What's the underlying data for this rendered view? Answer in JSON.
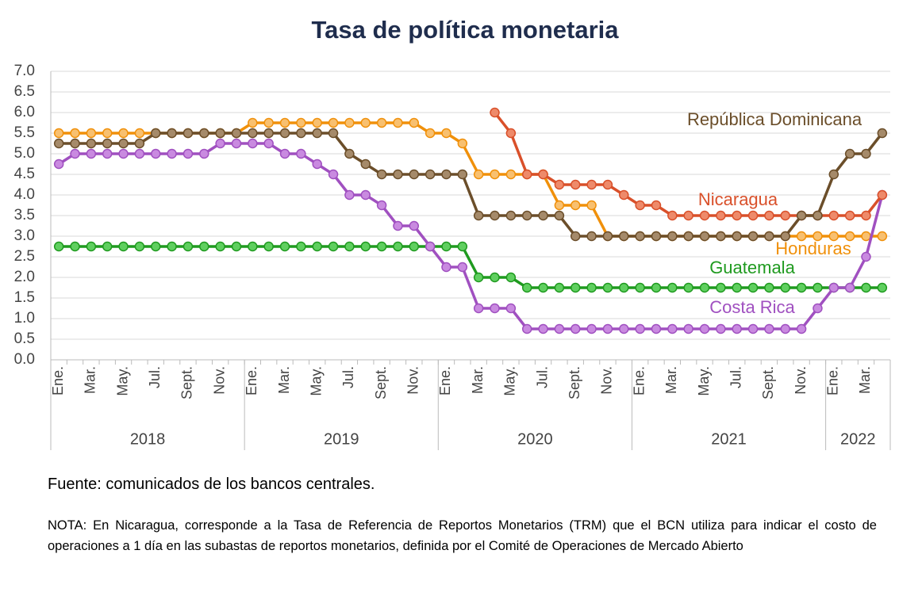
{
  "chart_data": {
    "type": "line",
    "title": "Tasa de política monetaria",
    "categories": [
      "Ene.",
      null,
      "Mar.",
      null,
      "May.",
      null,
      "Jul.",
      null,
      "Sept.",
      null,
      "Nov.",
      null,
      "Ene.",
      null,
      "Mar.",
      null,
      "May.",
      null,
      "Jul.",
      null,
      "Sept.",
      null,
      "Nov.",
      null,
      "Ene.",
      null,
      "Mar.",
      null,
      "May.",
      null,
      "Jul.",
      null,
      "Sept.",
      null,
      "Nov.",
      null,
      "Ene.",
      null,
      "Mar.",
      null,
      "May.",
      null,
      "Jul.",
      null,
      "Sept.",
      null,
      "Nov.",
      null,
      "Ene.",
      null,
      "Mar.",
      null
    ],
    "years": [
      "2018",
      "2019",
      "2020",
      "2021",
      "2022"
    ],
    "ylim": [
      0,
      7
    ],
    "yticks": [
      {
        "value": 0,
        "label": "0.0"
      },
      {
        "value": 0.5,
        "label": "0.5"
      },
      {
        "value": 1,
        "label": "1.0"
      },
      {
        "value": 1.5,
        "label": "1.5"
      },
      {
        "value": 2,
        "label": "2.0"
      },
      {
        "value": 2.5,
        "label": "2.5"
      },
      {
        "value": 3,
        "label": "3.0"
      },
      {
        "value": 3.5,
        "label": "3.5"
      },
      {
        "value": 4,
        "label": "4.0"
      },
      {
        "value": 4.5,
        "label": "4.5"
      },
      {
        "value": 5,
        "label": "5.0"
      },
      {
        "value": 5.5,
        "label": "5.5"
      },
      {
        "value": 6,
        "label": "6.0"
      },
      {
        "value": 6.5,
        "label": "6.5"
      },
      {
        "value": 7,
        "label": "7.0"
      }
    ],
    "grid": true,
    "series": [
      {
        "name": "Guatemala",
        "color": "#1f9a1f",
        "marker": "#5fcf5f",
        "values": [
          2.75,
          2.75,
          2.75,
          2.75,
          2.75,
          2.75,
          2.75,
          2.75,
          2.75,
          2.75,
          2.75,
          2.75,
          2.75,
          2.75,
          2.75,
          2.75,
          2.75,
          2.75,
          2.75,
          2.75,
          2.75,
          2.75,
          2.75,
          2.75,
          2.75,
          2.75,
          2,
          2,
          2,
          1.75,
          1.75,
          1.75,
          1.75,
          1.75,
          1.75,
          1.75,
          1.75,
          1.75,
          1.75,
          1.75,
          1.75,
          1.75,
          1.75,
          1.75,
          1.75,
          1.75,
          1.75,
          1.75,
          1.75,
          1.75,
          1.75,
          1.75
        ]
      },
      {
        "name": "Honduras",
        "color": "#f0900a",
        "marker": "#f8c070",
        "values": [
          5.5,
          5.5,
          5.5,
          5.5,
          5.5,
          5.5,
          5.5,
          5.5,
          5.5,
          5.5,
          5.5,
          5.5,
          5.75,
          5.75,
          5.75,
          5.75,
          5.75,
          5.75,
          5.75,
          5.75,
          5.75,
          5.75,
          5.75,
          5.5,
          5.5,
          5.25,
          4.5,
          4.5,
          4.5,
          4.5,
          4.5,
          3.75,
          3.75,
          3.75,
          3,
          3,
          3,
          3,
          3,
          3,
          3,
          3,
          3,
          3,
          3,
          3,
          3,
          3,
          3,
          3,
          3,
          3
        ]
      },
      {
        "name": "Costa Rica",
        "color": "#a050c0",
        "marker": "#c98ae0",
        "values": [
          4.75,
          5,
          5,
          5,
          5,
          5,
          5,
          5,
          5,
          5,
          5.25,
          5.25,
          5.25,
          5.25,
          5,
          5,
          4.75,
          4.5,
          4,
          4,
          3.75,
          3.25,
          3.25,
          2.75,
          2.25,
          2.25,
          1.25,
          1.25,
          1.25,
          0.75,
          0.75,
          0.75,
          0.75,
          0.75,
          0.75,
          0.75,
          0.75,
          0.75,
          0.75,
          0.75,
          0.75,
          0.75,
          0.75,
          0.75,
          0.75,
          0.75,
          0.75,
          1.25,
          1.75,
          1.75,
          2.5,
          4
        ]
      },
      {
        "name": "Nicaragua",
        "color": "#d9502a",
        "marker": "#ee8a6a",
        "values": [
          null,
          null,
          null,
          null,
          null,
          null,
          null,
          null,
          null,
          null,
          null,
          null,
          null,
          null,
          null,
          null,
          null,
          null,
          null,
          null,
          null,
          null,
          null,
          null,
          null,
          null,
          null,
          6,
          5.5,
          4.5,
          4.5,
          4.25,
          4.25,
          4.25,
          4.25,
          4,
          3.75,
          3.75,
          3.5,
          3.5,
          3.5,
          3.5,
          3.5,
          3.5,
          3.5,
          3.5,
          3.5,
          3.5,
          3.5,
          3.5,
          3.5,
          4
        ]
      },
      {
        "name": "República Dominicana",
        "color": "#6b4e2a",
        "marker": "#a58a6a",
        "values": [
          5.25,
          5.25,
          5.25,
          5.25,
          5.25,
          5.25,
          5.5,
          5.5,
          5.5,
          5.5,
          5.5,
          5.5,
          5.5,
          5.5,
          5.5,
          5.5,
          5.5,
          5.5,
          5,
          4.75,
          4.5,
          4.5,
          4.5,
          4.5,
          4.5,
          4.5,
          3.5,
          3.5,
          3.5,
          3.5,
          3.5,
          3.5,
          3,
          3,
          3,
          3,
          3,
          3,
          3,
          3,
          3,
          3,
          3,
          3,
          3,
          3,
          3.5,
          3.5,
          4.5,
          5,
          5,
          5.5
        ]
      }
    ]
  },
  "source": "Fuente: comunicados de los bancos centrales.",
  "note": "NOTA: En Nicaragua, corresponde a la Tasa de Referencia de Reportos Monetarios (TRM) que el BCN utiliza para indicar el costo de operaciones a 1 día en las subastas de reportos monetarios, definida por el Comité de Operaciones de Mercado Abierto"
}
